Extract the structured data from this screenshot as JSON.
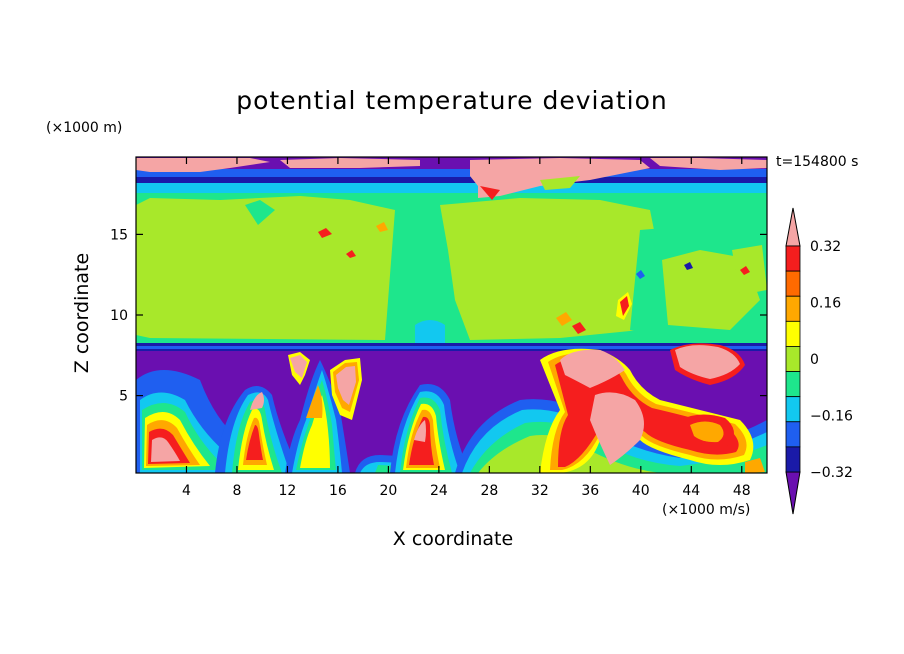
{
  "chart_data": {
    "type": "heatmap",
    "title": "potential temperature deviation",
    "xlabel": "X coordinate",
    "ylabel": "Z coordinate",
    "x_unit": "(×1000 m/s)",
    "y_unit": "(×1000 m)",
    "time_label": "t=154800 s",
    "xlim": [
      0,
      50
    ],
    "ylim": [
      0.2,
      19.8
    ],
    "x_ticks": [
      4,
      8,
      12,
      16,
      20,
      24,
      28,
      32,
      36,
      40,
      44,
      48
    ],
    "y_ticks": [
      5,
      10,
      15
    ],
    "colorbar": {
      "tick_labels": [
        "0.32",
        "0.16",
        "0",
        "−0.16",
        "−0.32"
      ],
      "tick_values": [
        0.32,
        0.16,
        0,
        -0.16,
        -0.32
      ],
      "levels": [
        -0.4,
        -0.32,
        -0.24,
        -0.16,
        -0.08,
        0,
        0.08,
        0.16,
        0.24,
        0.32,
        0.4
      ],
      "colors": [
        "#6a0fb0",
        "#1a1aa8",
        "#1f5ff0",
        "#12c8f0",
        "#1ee68c",
        "#a8e82a",
        "#ffff00",
        "#ffa800",
        "#ff6a00",
        "#f51e1e",
        "#f5a5a5"
      ],
      "extend": "both"
    },
    "fields": {
      "layers": [
        {
          "z": [
            19.1,
            19.8
          ],
          "value": -0.38
        },
        {
          "z": [
            18.6,
            19.1
          ],
          "value": -0.22
        },
        {
          "z": [
            18.35,
            18.6
          ],
          "value": -0.33
        },
        {
          "z": [
            18.0,
            18.35
          ],
          "value": -0.12
        },
        {
          "z": [
            8.2,
            18.0
          ],
          "value": 0.03
        },
        {
          "z": [
            7.6,
            8.2
          ],
          "value": -0.22
        },
        {
          "z": [
            0.2,
            7.6
          ],
          "value": -0.38
        }
      ],
      "warm_regions": [
        {
          "x": 10,
          "z": 12.5,
          "value": 0.07
        },
        {
          "x": 30,
          "z": 12.5,
          "value": 0.07
        },
        {
          "x": 46,
          "z": 12.5,
          "value": 0.07
        },
        {
          "x": 2.5,
          "z": 2.0,
          "value": 0.42
        },
        {
          "x": 9.8,
          "z": 4.8,
          "value": 0.42
        },
        {
          "x": 13.5,
          "z": 6.5,
          "value": 0.42
        },
        {
          "x": 17.5,
          "z": 5.5,
          "value": 0.42
        },
        {
          "x": 22.6,
          "z": 3.2,
          "value": 0.42
        },
        {
          "x": 38.5,
          "z": 3.5,
          "value": 0.42
        },
        {
          "x": 44.5,
          "z": 6.6,
          "value": 0.42
        },
        {
          "x": 37.0,
          "z": 6.6,
          "value": 0.42
        },
        {
          "x": 40.0,
          "z": 19.3,
          "value": 0.42
        },
        {
          "x": 6.0,
          "z": 19.3,
          "value": 0.42
        },
        {
          "x": 20.5,
          "z": 19.3,
          "value": 0.42
        }
      ]
    }
  }
}
